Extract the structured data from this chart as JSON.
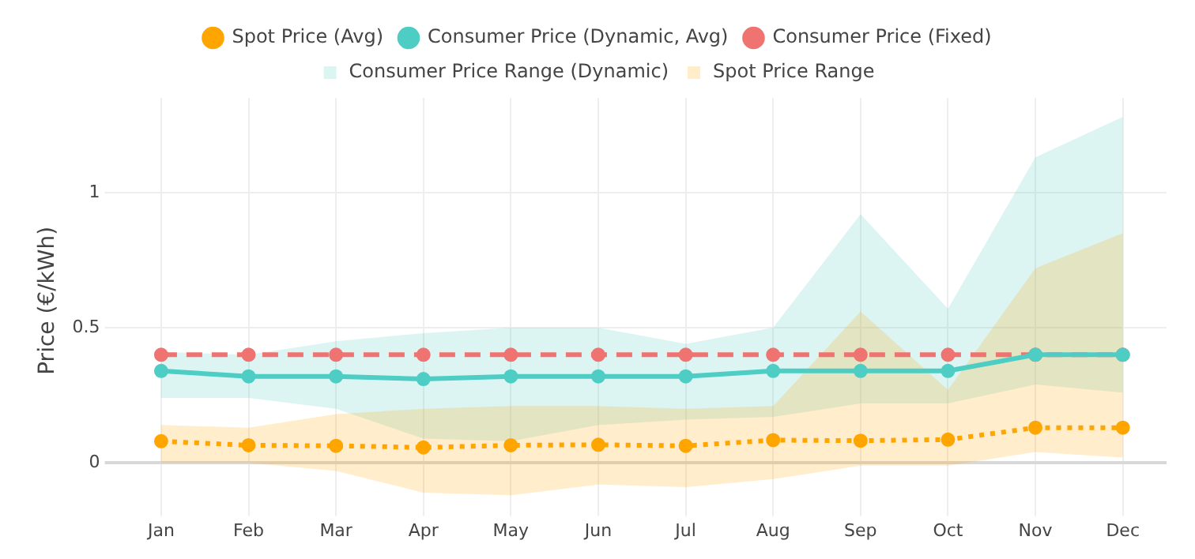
{
  "chart_data": {
    "type": "line",
    "ylabel": "Price (€/kWh)",
    "categories": [
      "Jan",
      "Feb",
      "Mar",
      "Apr",
      "May",
      "Jun",
      "Jul",
      "Aug",
      "Sep",
      "Oct",
      "Nov",
      "Dec"
    ],
    "series": [
      {
        "name": "Consumer Price (Fixed)",
        "type": "line",
        "color": "#ef7370",
        "line_style": "dashed",
        "marker": "circle",
        "values": [
          0.4,
          0.4,
          0.4,
          0.4,
          0.4,
          0.4,
          0.4,
          0.4,
          0.4,
          0.4,
          0.4,
          0.4
        ]
      },
      {
        "name": "Consumer Price (Dynamic, Avg)",
        "type": "line",
        "color": "#4ecdc4",
        "line_style": "solid",
        "marker": "circle",
        "values": [
          0.34,
          0.32,
          0.32,
          0.31,
          0.32,
          0.32,
          0.32,
          0.34,
          0.34,
          0.34,
          0.4,
          0.4
        ]
      },
      {
        "name": "Consumer Price Range (Dynamic)",
        "type": "area",
        "color": "#4ecdc4",
        "values": [
          null,
          null,
          null,
          null,
          null,
          null,
          null,
          null,
          null,
          null,
          null,
          null
        ],
        "lower": [
          0.24,
          0.24,
          0.2,
          0.09,
          0.08,
          0.14,
          0.16,
          0.17,
          0.22,
          0.22,
          0.29,
          0.26
        ],
        "upper": [
          0.41,
          0.4,
          0.45,
          0.48,
          0.5,
          0.5,
          0.44,
          0.5,
          0.92,
          0.57,
          1.13,
          1.28
        ]
      },
      {
        "name": "Spot Price Range",
        "type": "area",
        "color": "#ffa500",
        "values": [
          null,
          null,
          null,
          null,
          null,
          null,
          null,
          null,
          null,
          null,
          null,
          null
        ],
        "lower": [
          0,
          0,
          -0.03,
          -0.11,
          -0.12,
          -0.08,
          -0.09,
          -0.06,
          -0.01,
          -0.01,
          0.04,
          0.02
        ],
        "upper": [
          0.14,
          0.13,
          0.18,
          0.2,
          0.21,
          0.21,
          0.2,
          0.21,
          0.56,
          0.27,
          0.72,
          0.85
        ]
      },
      {
        "name": "Spot Price (Avg)",
        "type": "line",
        "color": "#ffa500",
        "line_style": "dotted",
        "marker": "circle",
        "values": [
          0.08,
          0.065,
          0.063,
          0.057,
          0.065,
          0.067,
          0.063,
          0.084,
          0.082,
          0.086,
          0.13,
          0.13
        ]
      }
    ],
    "ylim": [
      -0.15,
      1.35
    ],
    "yticks": [
      0,
      0.5,
      1
    ],
    "grid": true,
    "legend": "top"
  }
}
